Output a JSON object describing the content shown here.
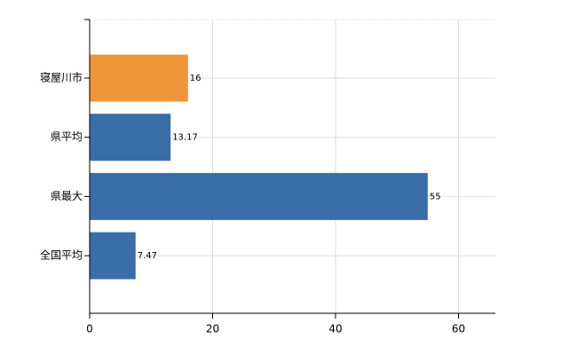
{
  "chart_data": {
    "type": "bar",
    "orientation": "horizontal",
    "categories": [
      "寝屋川市",
      "県平均",
      "県最大",
      "全国平均"
    ],
    "values": [
      16,
      13.17,
      55,
      7.47
    ],
    "colors": [
      "#f0953a",
      "#3a6ea8",
      "#3a6ea8",
      "#3a6ea8"
    ],
    "xlim": [
      0,
      66
    ],
    "xticks": [
      0,
      20,
      40,
      60
    ],
    "grid": true
  }
}
